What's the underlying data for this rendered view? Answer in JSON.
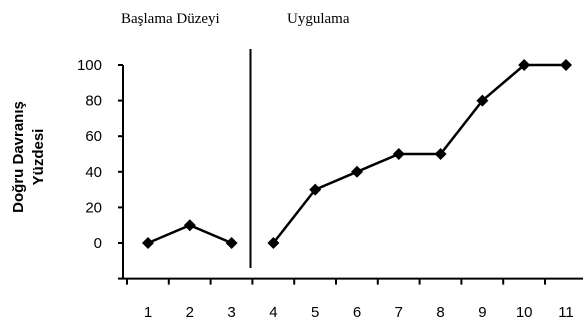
{
  "chart_data": {
    "type": "line",
    "title": "",
    "xlabel": "",
    "ylabel_lines": [
      "Doğru Davranış",
      "Yüzdesi"
    ],
    "ylim": [
      -20,
      100
    ],
    "yticks": [
      0,
      20,
      40,
      60,
      80,
      100
    ],
    "x_categories": [
      "1",
      "2",
      "3",
      "4",
      "5",
      "6",
      "7",
      "8",
      "9",
      "10",
      "11"
    ],
    "phase_labels": [
      "Başlama Düzeyi",
      "Uygulama"
    ],
    "phase_change_after": "3",
    "marker": "diamond",
    "grid": false,
    "line_color": "#000000",
    "series": [
      {
        "phase": "Başlama Düzeyi",
        "x": [
          "1",
          "2",
          "3"
        ],
        "values": [
          0,
          10,
          0
        ]
      },
      {
        "phase": "Uygulama",
        "x": [
          "4",
          "5",
          "6",
          "7",
          "8",
          "9",
          "10",
          "11"
        ],
        "values": [
          0,
          30,
          40,
          50,
          50,
          80,
          100,
          100
        ]
      }
    ]
  }
}
